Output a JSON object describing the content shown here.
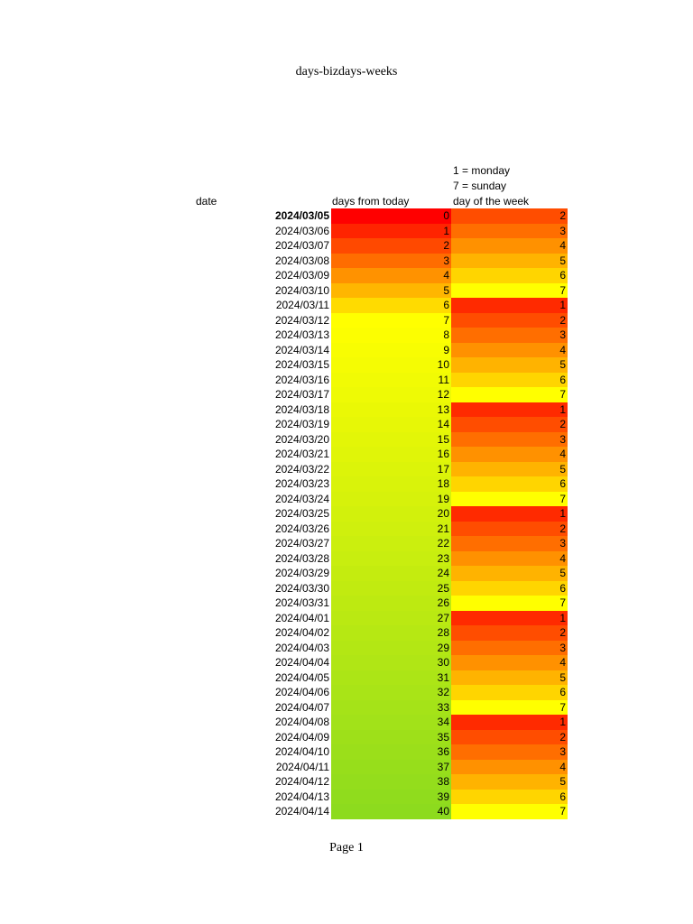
{
  "page": {
    "title": "days-bizdays-weeks",
    "footer": "Page 1"
  },
  "notes": {
    "monday": "1 = monday",
    "sunday": "7 = sunday"
  },
  "headers": {
    "date": "date",
    "days": "days from today",
    "dow": "day of the week"
  },
  "colors": {
    "dow": {
      "1": "#ff2a00",
      "2": "#ff4d00",
      "3": "#ff6e00",
      "4": "#ff9100",
      "5": "#ffb300",
      "6": "#ffd500",
      "7": "#ffff00"
    },
    "days_gradient": [
      "#ff0000",
      "#ffff00",
      "#8ddb1e"
    ]
  },
  "rows": [
    {
      "date": "2024/03/05",
      "days": "0",
      "dow": "2",
      "bold": true
    },
    {
      "date": "2024/03/06",
      "days": "1",
      "dow": "3"
    },
    {
      "date": "2024/03/07",
      "days": "2",
      "dow": "4"
    },
    {
      "date": "2024/03/08",
      "days": "3",
      "dow": "5"
    },
    {
      "date": "2024/03/09",
      "days": "4",
      "dow": "6"
    },
    {
      "date": "2024/03/10",
      "days": "5",
      "dow": "7"
    },
    {
      "date": "2024/03/11",
      "days": "6",
      "dow": "1"
    },
    {
      "date": "2024/03/12",
      "days": "7",
      "dow": "2"
    },
    {
      "date": "2024/03/13",
      "days": "8",
      "dow": "3"
    },
    {
      "date": "2024/03/14",
      "days": "9",
      "dow": "4"
    },
    {
      "date": "2024/03/15",
      "days": "10",
      "dow": "5"
    },
    {
      "date": "2024/03/16",
      "days": "11",
      "dow": "6"
    },
    {
      "date": "2024/03/17",
      "days": "12",
      "dow": "7"
    },
    {
      "date": "2024/03/18",
      "days": "13",
      "dow": "1"
    },
    {
      "date": "2024/03/19",
      "days": "14",
      "dow": "2"
    },
    {
      "date": "2024/03/20",
      "days": "15",
      "dow": "3"
    },
    {
      "date": "2024/03/21",
      "days": "16",
      "dow": "4"
    },
    {
      "date": "2024/03/22",
      "days": "17",
      "dow": "5"
    },
    {
      "date": "2024/03/23",
      "days": "18",
      "dow": "6"
    },
    {
      "date": "2024/03/24",
      "days": "19",
      "dow": "7"
    },
    {
      "date": "2024/03/25",
      "days": "20",
      "dow": "1"
    },
    {
      "date": "2024/03/26",
      "days": "21",
      "dow": "2"
    },
    {
      "date": "2024/03/27",
      "days": "22",
      "dow": "3"
    },
    {
      "date": "2024/03/28",
      "days": "23",
      "dow": "4"
    },
    {
      "date": "2024/03/29",
      "days": "24",
      "dow": "5"
    },
    {
      "date": "2024/03/30",
      "days": "25",
      "dow": "6"
    },
    {
      "date": "2024/03/31",
      "days": "26",
      "dow": "7"
    },
    {
      "date": "2024/04/01",
      "days": "27",
      "dow": "1"
    },
    {
      "date": "2024/04/02",
      "days": "28",
      "dow": "2"
    },
    {
      "date": "2024/04/03",
      "days": "29",
      "dow": "3"
    },
    {
      "date": "2024/04/04",
      "days": "30",
      "dow": "4"
    },
    {
      "date": "2024/04/05",
      "days": "31",
      "dow": "5"
    },
    {
      "date": "2024/04/06",
      "days": "32",
      "dow": "6"
    },
    {
      "date": "2024/04/07",
      "days": "33",
      "dow": "7"
    },
    {
      "date": "2024/04/08",
      "days": "34",
      "dow": "1"
    },
    {
      "date": "2024/04/09",
      "days": "35",
      "dow": "2"
    },
    {
      "date": "2024/04/10",
      "days": "36",
      "dow": "3"
    },
    {
      "date": "2024/04/11",
      "days": "37",
      "dow": "4"
    },
    {
      "date": "2024/04/12",
      "days": "38",
      "dow": "5"
    },
    {
      "date": "2024/04/13",
      "days": "39",
      "dow": "6"
    },
    {
      "date": "2024/04/14",
      "days": "40",
      "dow": "7"
    }
  ]
}
